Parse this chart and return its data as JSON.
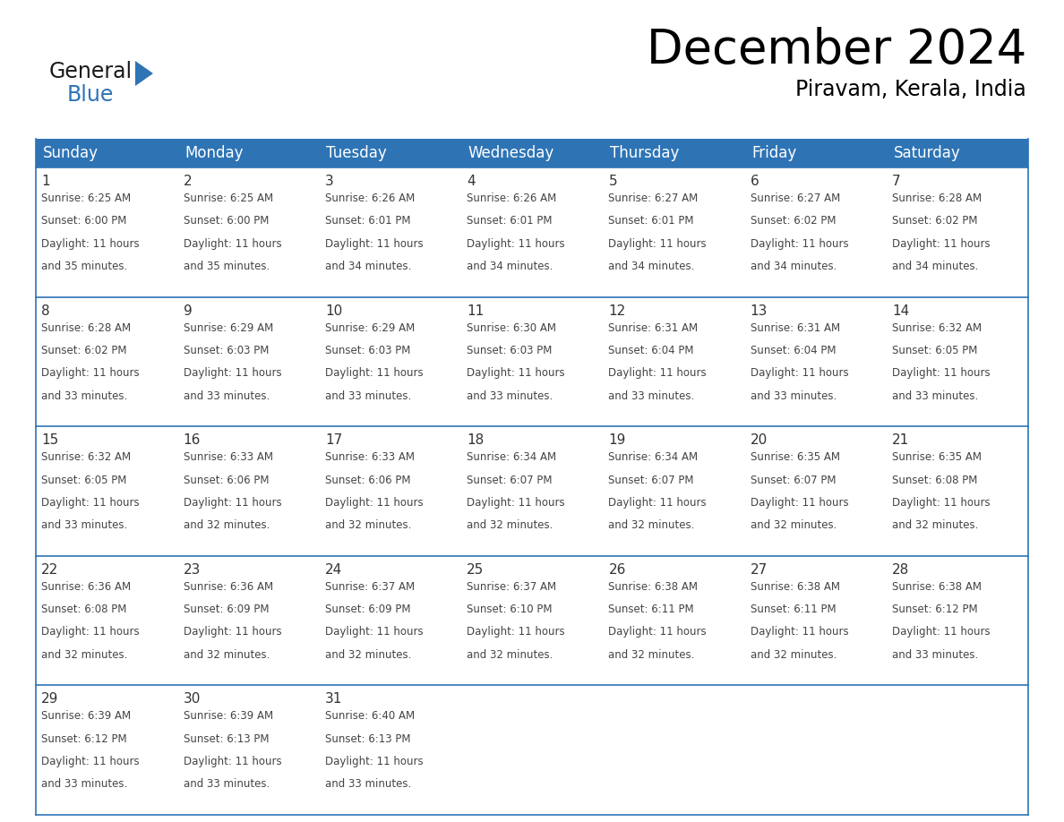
{
  "title": "December 2024",
  "subtitle": "Piravam, Kerala, India",
  "header_bg_color": "#2E74B5",
  "header_text_color": "#FFFFFF",
  "cell_bg_color": "#FFFFFF",
  "cell_border_color": "#2E74B5",
  "alt_row_bg": "#F2F2F2",
  "day_number_color": "#333333",
  "cell_text_color": "#444444",
  "days_of_week": [
    "Sunday",
    "Monday",
    "Tuesday",
    "Wednesday",
    "Thursday",
    "Friday",
    "Saturday"
  ],
  "calendar_data": [
    [
      {
        "day": 1,
        "sunrise": "6:25 AM",
        "sunset": "6:00 PM",
        "daylight_hours": 11,
        "daylight_minutes": 35
      },
      {
        "day": 2,
        "sunrise": "6:25 AM",
        "sunset": "6:00 PM",
        "daylight_hours": 11,
        "daylight_minutes": 35
      },
      {
        "day": 3,
        "sunrise": "6:26 AM",
        "sunset": "6:01 PM",
        "daylight_hours": 11,
        "daylight_minutes": 34
      },
      {
        "day": 4,
        "sunrise": "6:26 AM",
        "sunset": "6:01 PM",
        "daylight_hours": 11,
        "daylight_minutes": 34
      },
      {
        "day": 5,
        "sunrise": "6:27 AM",
        "sunset": "6:01 PM",
        "daylight_hours": 11,
        "daylight_minutes": 34
      },
      {
        "day": 6,
        "sunrise": "6:27 AM",
        "sunset": "6:02 PM",
        "daylight_hours": 11,
        "daylight_minutes": 34
      },
      {
        "day": 7,
        "sunrise": "6:28 AM",
        "sunset": "6:02 PM",
        "daylight_hours": 11,
        "daylight_minutes": 34
      }
    ],
    [
      {
        "day": 8,
        "sunrise": "6:28 AM",
        "sunset": "6:02 PM",
        "daylight_hours": 11,
        "daylight_minutes": 33
      },
      {
        "day": 9,
        "sunrise": "6:29 AM",
        "sunset": "6:03 PM",
        "daylight_hours": 11,
        "daylight_minutes": 33
      },
      {
        "day": 10,
        "sunrise": "6:29 AM",
        "sunset": "6:03 PM",
        "daylight_hours": 11,
        "daylight_minutes": 33
      },
      {
        "day": 11,
        "sunrise": "6:30 AM",
        "sunset": "6:03 PM",
        "daylight_hours": 11,
        "daylight_minutes": 33
      },
      {
        "day": 12,
        "sunrise": "6:31 AM",
        "sunset": "6:04 PM",
        "daylight_hours": 11,
        "daylight_minutes": 33
      },
      {
        "day": 13,
        "sunrise": "6:31 AM",
        "sunset": "6:04 PM",
        "daylight_hours": 11,
        "daylight_minutes": 33
      },
      {
        "day": 14,
        "sunrise": "6:32 AM",
        "sunset": "6:05 PM",
        "daylight_hours": 11,
        "daylight_minutes": 33
      }
    ],
    [
      {
        "day": 15,
        "sunrise": "6:32 AM",
        "sunset": "6:05 PM",
        "daylight_hours": 11,
        "daylight_minutes": 33
      },
      {
        "day": 16,
        "sunrise": "6:33 AM",
        "sunset": "6:06 PM",
        "daylight_hours": 11,
        "daylight_minutes": 32
      },
      {
        "day": 17,
        "sunrise": "6:33 AM",
        "sunset": "6:06 PM",
        "daylight_hours": 11,
        "daylight_minutes": 32
      },
      {
        "day": 18,
        "sunrise": "6:34 AM",
        "sunset": "6:07 PM",
        "daylight_hours": 11,
        "daylight_minutes": 32
      },
      {
        "day": 19,
        "sunrise": "6:34 AM",
        "sunset": "6:07 PM",
        "daylight_hours": 11,
        "daylight_minutes": 32
      },
      {
        "day": 20,
        "sunrise": "6:35 AM",
        "sunset": "6:07 PM",
        "daylight_hours": 11,
        "daylight_minutes": 32
      },
      {
        "day": 21,
        "sunrise": "6:35 AM",
        "sunset": "6:08 PM",
        "daylight_hours": 11,
        "daylight_minutes": 32
      }
    ],
    [
      {
        "day": 22,
        "sunrise": "6:36 AM",
        "sunset": "6:08 PM",
        "daylight_hours": 11,
        "daylight_minutes": 32
      },
      {
        "day": 23,
        "sunrise": "6:36 AM",
        "sunset": "6:09 PM",
        "daylight_hours": 11,
        "daylight_minutes": 32
      },
      {
        "day": 24,
        "sunrise": "6:37 AM",
        "sunset": "6:09 PM",
        "daylight_hours": 11,
        "daylight_minutes": 32
      },
      {
        "day": 25,
        "sunrise": "6:37 AM",
        "sunset": "6:10 PM",
        "daylight_hours": 11,
        "daylight_minutes": 32
      },
      {
        "day": 26,
        "sunrise": "6:38 AM",
        "sunset": "6:11 PM",
        "daylight_hours": 11,
        "daylight_minutes": 32
      },
      {
        "day": 27,
        "sunrise": "6:38 AM",
        "sunset": "6:11 PM",
        "daylight_hours": 11,
        "daylight_minutes": 32
      },
      {
        "day": 28,
        "sunrise": "6:38 AM",
        "sunset": "6:12 PM",
        "daylight_hours": 11,
        "daylight_minutes": 33
      }
    ],
    [
      {
        "day": 29,
        "sunrise": "6:39 AM",
        "sunset": "6:12 PM",
        "daylight_hours": 11,
        "daylight_minutes": 33
      },
      {
        "day": 30,
        "sunrise": "6:39 AM",
        "sunset": "6:13 PM",
        "daylight_hours": 11,
        "daylight_minutes": 33
      },
      {
        "day": 31,
        "sunrise": "6:40 AM",
        "sunset": "6:13 PM",
        "daylight_hours": 11,
        "daylight_minutes": 33
      },
      null,
      null,
      null,
      null
    ]
  ],
  "logo_text_general": "General",
  "logo_text_blue": "Blue",
  "logo_color_general": "#1a1a1a",
  "logo_color_blue": "#2E74B5",
  "title_fontsize": 38,
  "subtitle_fontsize": 17,
  "header_fontsize": 12,
  "day_number_fontsize": 11,
  "cell_text_fontsize": 8.5
}
